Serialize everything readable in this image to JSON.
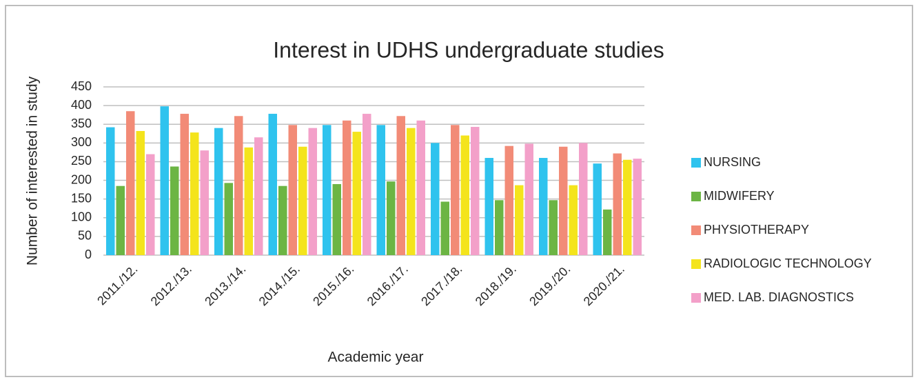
{
  "chart_data": {
    "type": "bar",
    "title": "Interest in UDHS undergraduate studies",
    "x_label": "Academic year",
    "y_label": "Number of interested in study",
    "categories": [
      "2011./12.",
      "2012./13.",
      "2013./14.",
      "2014./15.",
      "2015./16.",
      "2016./17.",
      "2017./18.",
      "2018./19.",
      "2019./20.",
      "2020./21."
    ],
    "series": [
      {
        "name": "NURSING",
        "color": "#2fc3ee",
        "values": [
          342,
          398,
          340,
          378,
          348,
          348,
          300,
          260,
          260,
          245
        ]
      },
      {
        "name": "MIDWIFERY",
        "color": "#6cb544",
        "values": [
          185,
          237,
          193,
          185,
          190,
          197,
          143,
          147,
          147,
          122
        ]
      },
      {
        "name": "PHYSIOTHERAPY",
        "color": "#f28b77",
        "values": [
          385,
          378,
          372,
          348,
          360,
          372,
          348,
          292,
          290,
          272
        ]
      },
      {
        "name": "RADIOLOGIC TECHNOLOGY",
        "color": "#f4e41c",
        "values": [
          332,
          328,
          288,
          290,
          330,
          340,
          320,
          187,
          187,
          255
        ]
      },
      {
        "name": "MED. LAB. DIAGNOSTICS",
        "color": "#f3a0c9",
        "values": [
          270,
          280,
          315,
          340,
          378,
          360,
          343,
          298,
          300,
          258
        ]
      }
    ],
    "ylim": [
      0,
      450
    ],
    "yticks": [
      0,
      50,
      100,
      150,
      200,
      250,
      300,
      350,
      400,
      450
    ],
    "grid": true,
    "legend": "right"
  }
}
